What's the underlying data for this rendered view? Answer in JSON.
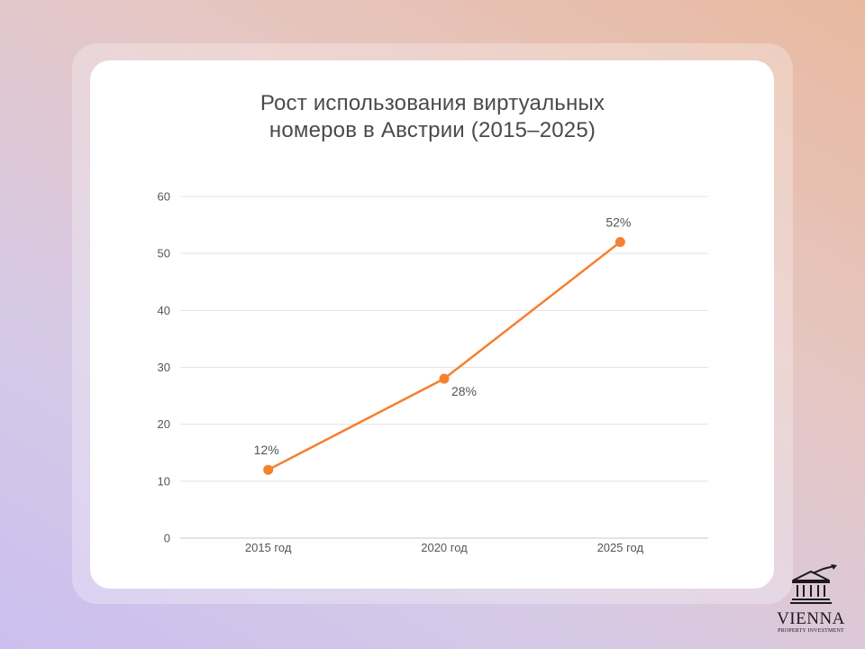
{
  "chart_data": {
    "type": "line",
    "title_lines": [
      "Рост использования виртуальных",
      "номеров в Австрии (2015–2025)"
    ],
    "categories": [
      "2015 год",
      "2020 год",
      "2025 год"
    ],
    "series": [
      {
        "values": [
          12,
          28,
          52
        ],
        "labels": [
          "12%",
          "28%",
          "52%"
        ],
        "label_position": [
          "above",
          "below",
          "above"
        ]
      }
    ],
    "ylim": [
      0,
      60
    ],
    "yticks": [
      0,
      10,
      20,
      30,
      40,
      50,
      60
    ],
    "grid": true,
    "colors": {
      "line": "#f5802f",
      "grid": "#e3e3e3",
      "axis": "#c8c8c8"
    }
  },
  "logo": {
    "name": "VIENNA",
    "subtitle": "PROPERTY INVESTMENT",
    "icon": "building-growth-icon"
  }
}
